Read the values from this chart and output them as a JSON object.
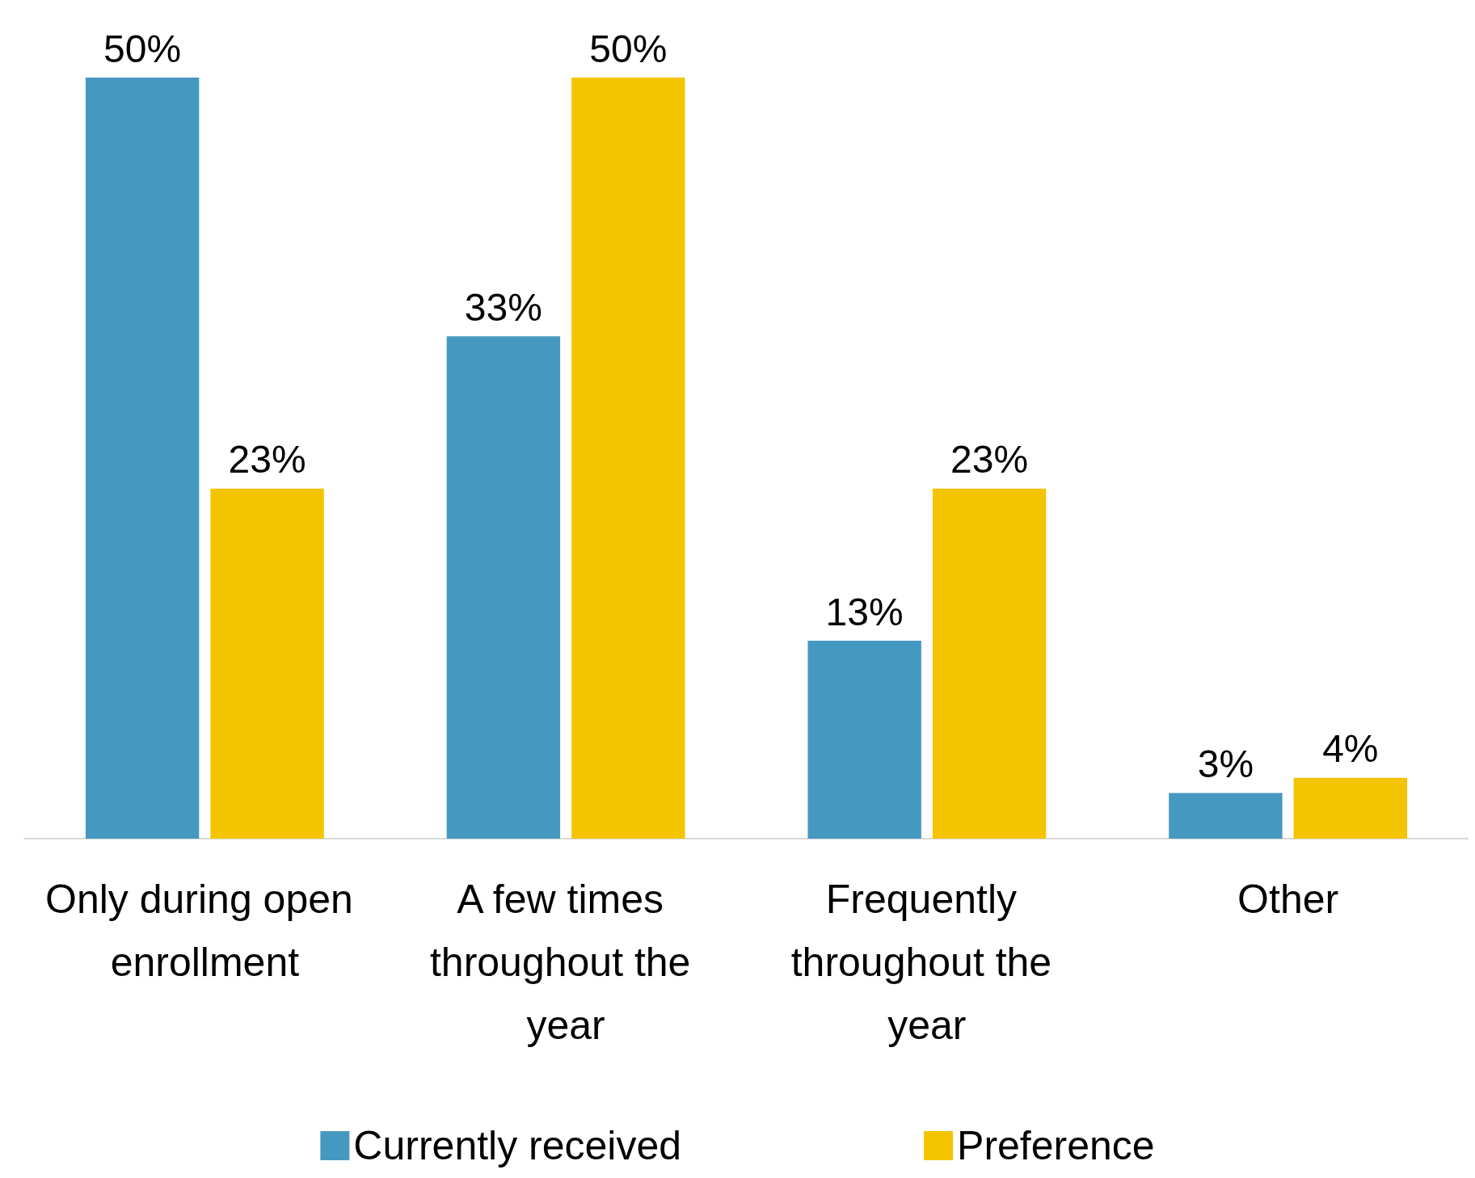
{
  "chart_data": {
    "type": "bar",
    "categories": [
      "Only during open enrollment",
      "A few times throughout the year",
      "Frequently throughout the year",
      "Other"
    ],
    "series": [
      {
        "name": "Currently received",
        "color": "#4599c0",
        "values": [
          50,
          33,
          13,
          3
        ],
        "value_labels": [
          "50%",
          "33%",
          "13%",
          "3%"
        ]
      },
      {
        "name": "Preference",
        "color": "#f5c400",
        "values": [
          23,
          50,
          23,
          4
        ],
        "value_labels": [
          "23%",
          "50%",
          "23%",
          "4%"
        ]
      }
    ],
    "legend": "bottom",
    "grid": false
  }
}
